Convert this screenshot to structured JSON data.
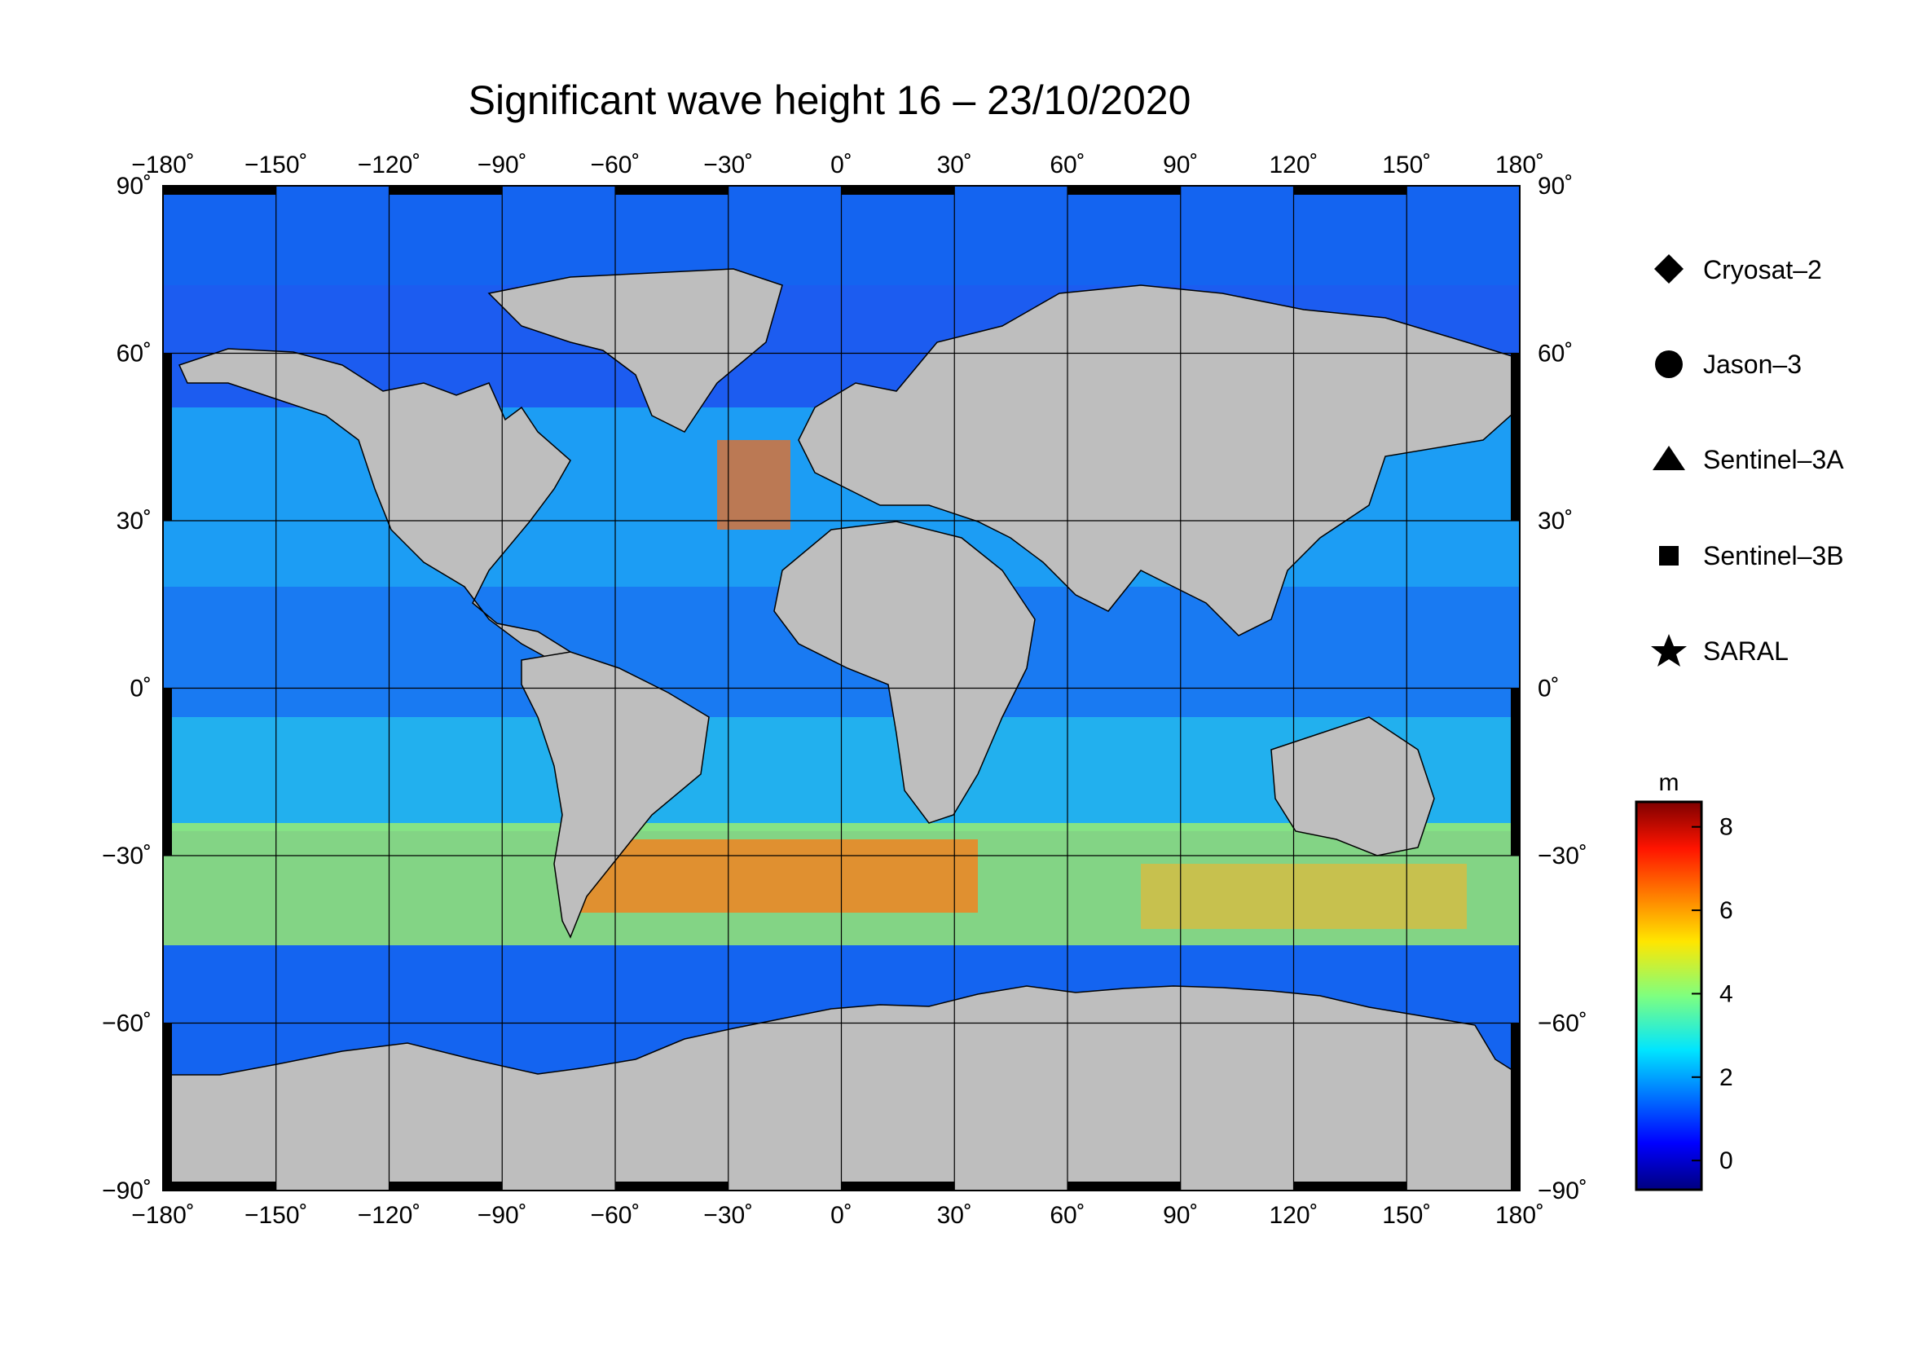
{
  "title": "Significant wave height 16 – 23/10/2020",
  "map": {
    "projection": "equirectangular",
    "lon_range": [
      -180,
      180
    ],
    "lat_range": [
      -90,
      90
    ],
    "lon_ticks": [
      -180,
      -150,
      -120,
      -90,
      -60,
      -30,
      0,
      30,
      60,
      90,
      120,
      150,
      180
    ],
    "lat_ticks": [
      -90,
      -60,
      -30,
      0,
      30,
      60,
      90
    ],
    "lon_tick_labels": [
      "−180˚",
      "−150˚",
      "−120˚",
      "−90˚",
      "−60˚",
      "−30˚",
      "0˚",
      "30˚",
      "60˚",
      "90˚",
      "120˚",
      "150˚",
      "180˚"
    ],
    "lat_tick_labels": [
      "−90˚",
      "−60˚",
      "−30˚",
      "0˚",
      "30˚",
      "60˚",
      "90˚"
    ],
    "grid": true,
    "land_color": "#bebebe",
    "ice_color": "#ffffff"
  },
  "legend": {
    "placement": "right",
    "items": [
      {
        "label": "Cryosat–2",
        "icon": "diamond-icon"
      },
      {
        "label": "Jason–3",
        "icon": "circle-icon"
      },
      {
        "label": "Sentinel–3A",
        "icon": "triangle-icon"
      },
      {
        "label": "Sentinel–3B",
        "icon": "square-icon"
      },
      {
        "label": "SARAL",
        "icon": "star-icon"
      }
    ]
  },
  "colorbar": {
    "unit": "m",
    "range": [
      -0.7,
      8.6
    ],
    "ticks": [
      0,
      2,
      4,
      6,
      8
    ],
    "tick_labels": [
      "0",
      "2",
      "4",
      "6",
      "8"
    ],
    "colormap": "jet"
  }
}
